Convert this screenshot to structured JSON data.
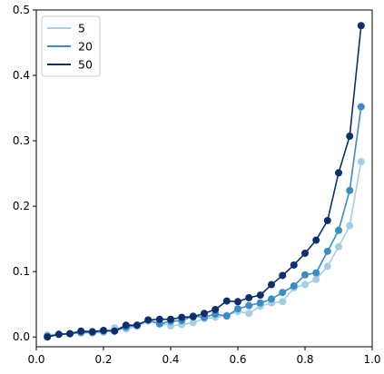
{
  "chart_data": {
    "type": "line",
    "title": "",
    "xlabel": "",
    "ylabel": "",
    "xlim": [
      0.0,
      1.0
    ],
    "ylim": [
      -0.015,
      0.5
    ],
    "xticks": [
      0.0,
      0.2,
      0.4,
      0.6,
      0.8,
      1.0
    ],
    "xtick_labels": [
      "0.0",
      "0.2",
      "0.4",
      "0.6",
      "0.8",
      "1.0"
    ],
    "yticks": [
      0.0,
      0.1,
      0.2,
      0.3,
      0.4,
      0.5
    ],
    "ytick_labels": [
      "0.0",
      "0.1",
      "0.2",
      "0.3",
      "0.4",
      "0.5"
    ],
    "grid": false,
    "legend_position": "top-left",
    "x": [
      0.033,
      0.067,
      0.1,
      0.133,
      0.167,
      0.2,
      0.233,
      0.267,
      0.3,
      0.333,
      0.367,
      0.4,
      0.433,
      0.467,
      0.5,
      0.533,
      0.567,
      0.6,
      0.633,
      0.667,
      0.7,
      0.733,
      0.767,
      0.8,
      0.833,
      0.867,
      0.9,
      0.933,
      0.967
    ],
    "series": [
      {
        "name": "5",
        "color": "#a6cee3",
        "values": [
          0.003,
          0.004,
          0.005,
          0.006,
          0.006,
          0.007,
          0.014,
          0.012,
          0.016,
          0.024,
          0.021,
          0.017,
          0.019,
          0.022,
          0.028,
          0.03,
          0.033,
          0.039,
          0.036,
          0.047,
          0.052,
          0.054,
          0.075,
          0.08,
          0.088,
          0.108,
          0.138,
          0.17,
          0.268
        ]
      },
      {
        "name": "20",
        "color": "#3a8cc4",
        "values": [
          0.001,
          0.004,
          0.005,
          0.007,
          0.007,
          0.009,
          0.009,
          0.015,
          0.018,
          0.026,
          0.02,
          0.024,
          0.025,
          0.032,
          0.03,
          0.035,
          0.032,
          0.043,
          0.048,
          0.052,
          0.058,
          0.068,
          0.078,
          0.095,
          0.098,
          0.131,
          0.163,
          0.224,
          0.352
        ]
      },
      {
        "name": "50",
        "color": "#0d2f6e",
        "values": [
          0.0,
          0.004,
          0.005,
          0.009,
          0.008,
          0.01,
          0.009,
          0.018,
          0.018,
          0.026,
          0.027,
          0.027,
          0.03,
          0.031,
          0.036,
          0.042,
          0.055,
          0.054,
          0.06,
          0.064,
          0.08,
          0.094,
          0.11,
          0.128,
          0.148,
          0.178,
          0.251,
          0.307,
          0.476
        ]
      }
    ]
  }
}
